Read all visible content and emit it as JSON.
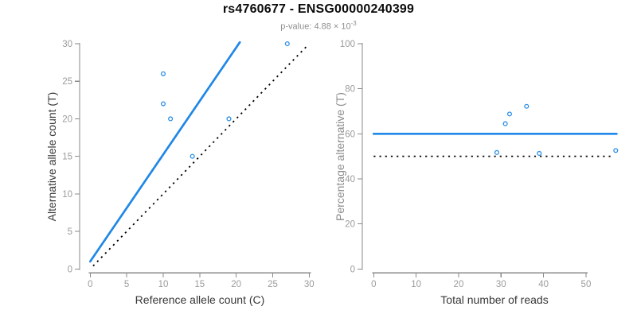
{
  "header": {
    "title": "rs4760677 - ENSG00000240399",
    "subtitle": {
      "label": "p-value:",
      "value_base": "4.88 × 10",
      "value_exponent": "-3",
      "full_text": "p-value: 4.88×10^-3"
    }
  },
  "style": {
    "accent_blue": "#1F87E6",
    "point_blue": "#2B8FE6",
    "dotted_black": "#000000",
    "axis_gray": "#8a8a8a",
    "tick_label_gray": "#9b9b9b"
  },
  "chart_data": [
    {
      "id": "allele-counts-scatter",
      "type": "scatter",
      "xlabel": "Reference allele count (C)",
      "ylabel": "Alternative allele count (T)",
      "xlim": [
        0,
        30
      ],
      "ylim": [
        0,
        30
      ],
      "xticks": [
        0,
        5,
        10,
        15,
        20,
        25,
        30
      ],
      "yticks": [
        0,
        5,
        10,
        15,
        20,
        25,
        30
      ],
      "grid": false,
      "points": [
        [
          10,
          26
        ],
        [
          10,
          22
        ],
        [
          11,
          20
        ],
        [
          14,
          15
        ],
        [
          19,
          20
        ],
        [
          27,
          30
        ]
      ],
      "lines": [
        {
          "name": "fit-line",
          "style": "solid",
          "color": "#1F87E6",
          "from": [
            0,
            1.0
          ],
          "to": [
            20.5,
            30.2
          ],
          "meaning": "fitted 60% alternative-allele ratio"
        },
        {
          "name": "identity-line",
          "style": "dotted",
          "color": "#000000",
          "from": [
            0.4,
            0.4
          ],
          "to": [
            29.9,
            29.9
          ],
          "meaning": "y = x (50% ratio)"
        }
      ]
    },
    {
      "id": "percentage-scatter",
      "type": "scatter",
      "xlabel": "Total number of reads",
      "ylabel": "Percentage alternative (T)",
      "xlim": [
        0,
        57.5
      ],
      "ylim": [
        0,
        100
      ],
      "xticks": [
        0,
        10,
        20,
        30,
        40,
        50
      ],
      "yticks": [
        0,
        20,
        40,
        60,
        80,
        100
      ],
      "grid": false,
      "points": [
        [
          36,
          72.2
        ],
        [
          32,
          68.8
        ],
        [
          31,
          64.5
        ],
        [
          29,
          51.7
        ],
        [
          39,
          51.3
        ],
        [
          57,
          52.6
        ]
      ],
      "lines": [
        {
          "name": "fit-line",
          "style": "solid",
          "color": "#1F87E6",
          "from": [
            0,
            60
          ],
          "to": [
            57.2,
            60
          ],
          "meaning": "estimated percentage ~60%"
        },
        {
          "name": "null-line",
          "style": "dotted",
          "color": "#000000",
          "from": [
            0,
            50
          ],
          "to": [
            56.2,
            50
          ],
          "meaning": "null 50% line"
        }
      ]
    }
  ]
}
